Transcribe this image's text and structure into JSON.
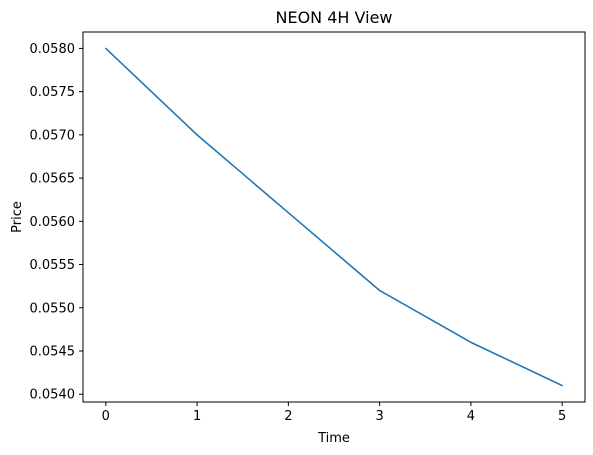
{
  "chart_data": {
    "type": "line",
    "title": "NEON 4H View",
    "xlabel": "Time",
    "ylabel": "Price",
    "x": [
      0,
      1,
      2,
      3,
      4,
      5
    ],
    "series": [
      {
        "values": [
          0.058,
          0.057,
          0.0561,
          0.0552,
          0.0546,
          0.0541
        ],
        "color": "#1f77b4"
      }
    ],
    "xlim": [
      -0.25,
      5.25
    ],
    "ylim": [
      0.05391,
      0.05819
    ],
    "xticks": [
      0,
      1,
      2,
      3,
      4,
      5
    ],
    "xtick_labels": [
      "0",
      "1",
      "2",
      "3",
      "4",
      "5"
    ],
    "yticks": [
      0.054,
      0.0545,
      0.055,
      0.0555,
      0.056,
      0.0565,
      0.057,
      0.0575,
      0.058
    ],
    "ytick_labels": [
      "0.0540",
      "0.0545",
      "0.0550",
      "0.0555",
      "0.0560",
      "0.0565",
      "0.0570",
      "0.0575",
      "0.0580"
    ],
    "grid": false,
    "legend": "none"
  }
}
